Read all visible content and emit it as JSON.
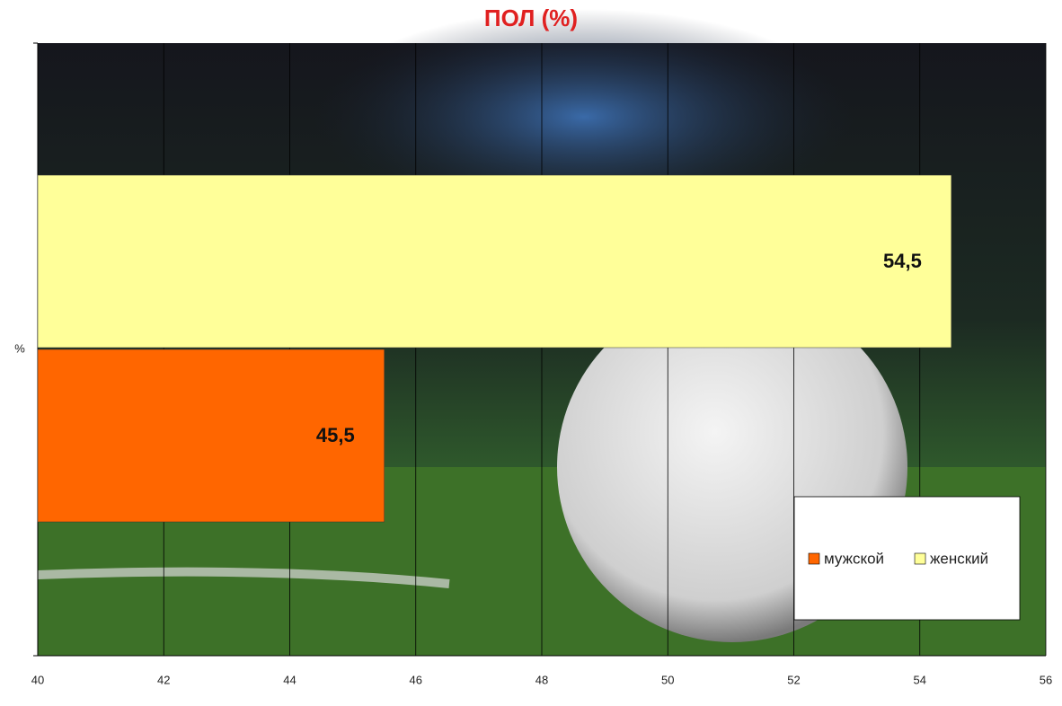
{
  "chart_data": {
    "type": "bar",
    "orientation": "horizontal",
    "title": "ПОЛ (%)",
    "categories": [
      "%"
    ],
    "series": [
      {
        "name": "мужской",
        "color": "#ff6600",
        "values": [
          45.5
        ],
        "value_labels": [
          "45,5"
        ]
      },
      {
        "name": "женский",
        "color": "#ffff99",
        "values": [
          54.5
        ],
        "value_labels": [
          "54,5"
        ]
      }
    ],
    "xlim": [
      40,
      56
    ],
    "xticks": [
      40,
      42,
      44,
      46,
      48,
      50,
      52,
      54,
      56
    ],
    "grid": true,
    "legend": "lower right"
  }
}
